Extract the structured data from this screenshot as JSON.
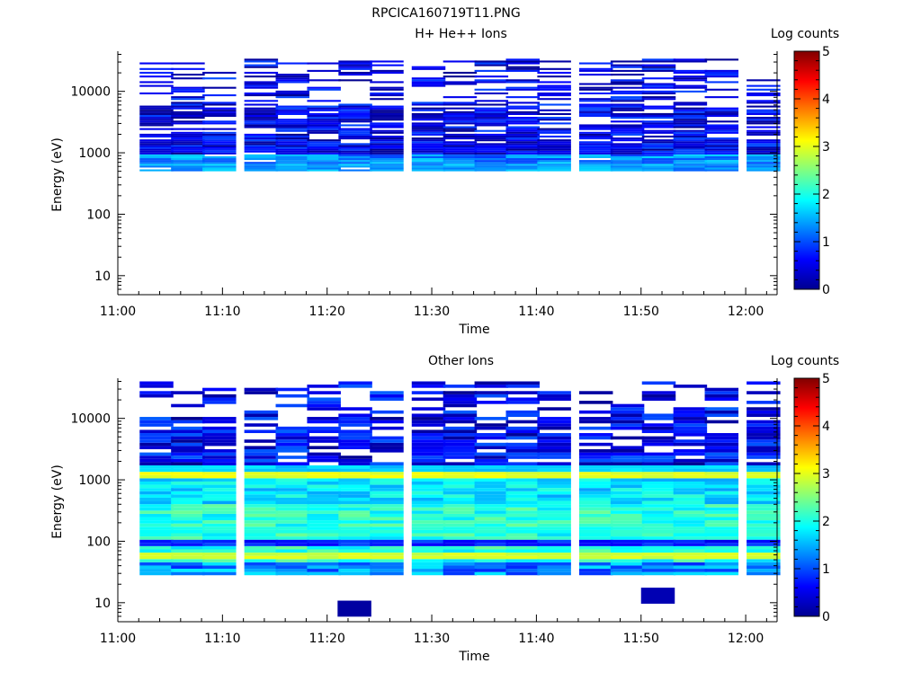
{
  "figure_title": "RPCICA160719T11.PNG",
  "colorbar_color_stops": [
    "#00008f",
    "#0000ff",
    "#0080ff",
    "#00ffff",
    "#80ff80",
    "#ffff00",
    "#ff8000",
    "#ff0000",
    "#800000"
  ],
  "chart_data": [
    {
      "type": "heatmap",
      "title": "H+ He++ Ions",
      "xlabel": "Time",
      "ylabel": "Energy (eV)",
      "yscale": "log",
      "xlim": [
        "11:00",
        "12:03"
      ],
      "ylim": [
        6,
        45000
      ],
      "x_tick_labels": [
        "11:00",
        "11:10",
        "11:20",
        "11:30",
        "11:40",
        "11:50",
        "12:00"
      ],
      "y_tick_labels": [
        "10",
        "100",
        "1000",
        "10000"
      ],
      "colorbar": {
        "label": "Log counts",
        "range": [
          0,
          5
        ],
        "tick_labels": [
          "0",
          "1",
          "2",
          "3",
          "4",
          "5"
        ]
      },
      "time_bins": [
        "11:02",
        "11:05",
        "11:08",
        "11:12",
        "11:15",
        "11:18",
        "11:21",
        "11:24",
        "11:28",
        "11:31",
        "11:34",
        "11:37",
        "11:40",
        "11:44",
        "11:47",
        "11:50",
        "11:53",
        "11:56",
        "12:00"
      ],
      "energy_range_eV": [
        500,
        34000
      ],
      "max_log_counts": 1.7
    },
    {
      "type": "heatmap",
      "title": "Other Ions",
      "xlabel": "Time",
      "ylabel": "Energy (eV)",
      "yscale": "log",
      "xlim": [
        "11:00",
        "12:03"
      ],
      "ylim": [
        6,
        45000
      ],
      "x_tick_labels": [
        "11:00",
        "11:10",
        "11:20",
        "11:30",
        "11:40",
        "11:50",
        "12:00"
      ],
      "y_tick_labels": [
        "10",
        "100",
        "1000",
        "10000"
      ],
      "colorbar": {
        "label": "Log counts",
        "range": [
          0,
          5
        ],
        "tick_labels": [
          "0",
          "1",
          "2",
          "3",
          "4",
          "5"
        ]
      },
      "time_bins": [
        "11:02",
        "11:05",
        "11:08",
        "11:12",
        "11:15",
        "11:18",
        "11:21",
        "11:24",
        "11:28",
        "11:31",
        "11:34",
        "11:37",
        "11:40",
        "11:44",
        "11:47",
        "11:50",
        "11:53",
        "11:56",
        "12:00"
      ],
      "energy_range_eV": [
        28,
        40000
      ],
      "bands": [
        {
          "energy_eV": 1150,
          "log_counts": 3.0
        },
        {
          "energy_eV": 60,
          "log_counts": 2.9
        },
        {
          "energy_eV": 150,
          "log_counts": 2.0
        }
      ],
      "isolated_cells": [
        {
          "time": "11:21",
          "energy_eV": 8,
          "log_counts": 0.1
        },
        {
          "time": "11:50",
          "energy_eV": 13,
          "log_counts": 0.2
        }
      ]
    }
  ]
}
